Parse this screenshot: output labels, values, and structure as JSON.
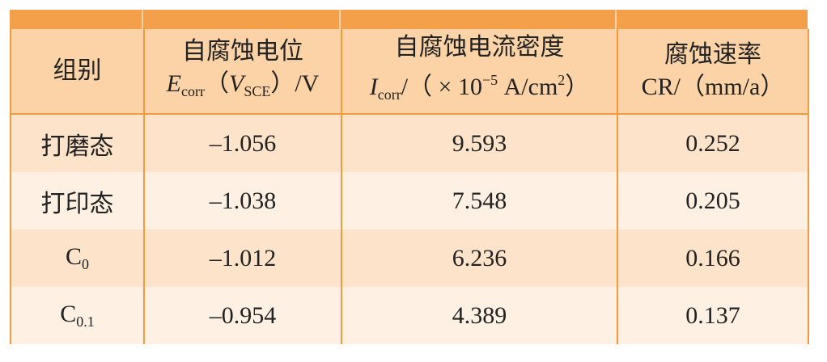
{
  "table": {
    "headers": [
      {
        "title": "组别",
        "unit": []
      },
      {
        "title": "自腐蚀电位",
        "unit": [
          {
            "text": "E",
            "style": "italic"
          },
          {
            "text": "corr",
            "style": "sub"
          },
          {
            "text": "（"
          },
          {
            "text": "V",
            "style": "italic"
          },
          {
            "text": "SCE",
            "style": "sub"
          },
          {
            "text": "）/V"
          }
        ]
      },
      {
        "title": "自腐蚀电流密度",
        "unit": [
          {
            "text": "I",
            "style": "italic"
          },
          {
            "text": "corr",
            "style": "sub"
          },
          {
            "text": "/（ × 10"
          },
          {
            "text": "−5",
            "style": "sup"
          },
          {
            "text": " A/cm"
          },
          {
            "text": "2",
            "style": "sup"
          },
          {
            "text": "）"
          }
        ]
      },
      {
        "title": "腐蚀速率",
        "unit": [
          {
            "text": "CR/（mm/a）"
          }
        ]
      }
    ],
    "rows": [
      {
        "label": [
          {
            "text": "打磨态"
          }
        ],
        "cells": [
          "–1.056",
          "9.593",
          "0.252"
        ]
      },
      {
        "label": [
          {
            "text": "打印态"
          }
        ],
        "cells": [
          "–1.038",
          "7.548",
          "0.205"
        ]
      },
      {
        "label": [
          {
            "text": "C"
          },
          {
            "text": "0",
            "style": "sub"
          }
        ],
        "cells": [
          "–1.012",
          "6.236",
          "0.166"
        ]
      },
      {
        "label": [
          {
            "text": "C"
          },
          {
            "text": "0.1",
            "style": "sub"
          }
        ],
        "cells": [
          "–0.954",
          "4.389",
          "0.137"
        ]
      }
    ]
  }
}
